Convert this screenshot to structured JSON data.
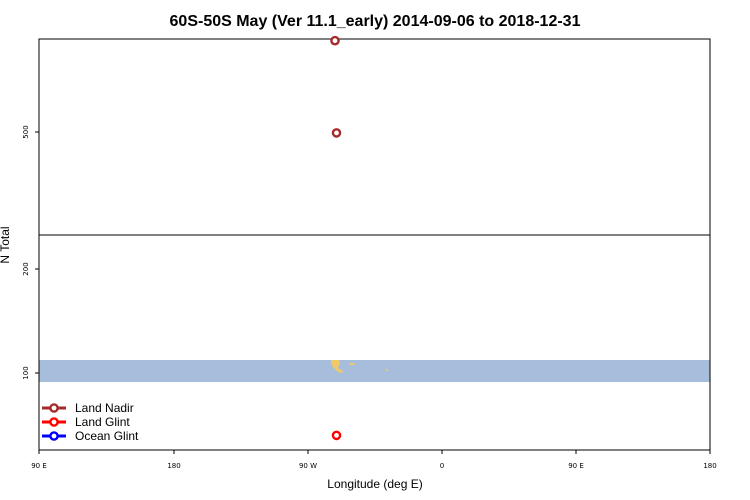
{
  "chart_data": {
    "type": "scatter",
    "title": "60S-50S May (Ver 11.1_early)   2014-09-06 to 2018-12-31",
    "xlabel": "Longitude (deg E)",
    "ylabel": "N Total",
    "x_ticks": [
      "90 E",
      "180",
      "90 W",
      "0",
      "90 E",
      "180"
    ],
    "upper_panel": {
      "y_ticks": [
        "500"
      ]
    },
    "lower_panel": {
      "y_ticks": [
        "200",
        "100"
      ]
    },
    "legend": {
      "position": "bottom-left",
      "entries": [
        {
          "label": "Land Nadir",
          "color": "#a52a2a"
        },
        {
          "label": "Land Glint",
          "color": "#ff0000"
        },
        {
          "label": "Ocean Glint",
          "color": "#0000ff"
        }
      ]
    },
    "series": [
      {
        "name": "Land Nadir",
        "color": "#a52a2a",
        "points": [
          {
            "lon": -71.5,
            "n": 700
          },
          {
            "lon": -70.5,
            "n": 498
          }
        ]
      },
      {
        "name": "Land Glint",
        "color": "#ff0000",
        "points": [
          {
            "lon": -70.5,
            "n": 40
          }
        ]
      },
      {
        "name": "Ocean Glint",
        "color": "#0000ff",
        "points": []
      }
    ],
    "background_band": {
      "color": "#a6bddb",
      "n_range": [
        91,
        111
      ]
    },
    "land_color": "#f2c96a",
    "grid": false
  }
}
